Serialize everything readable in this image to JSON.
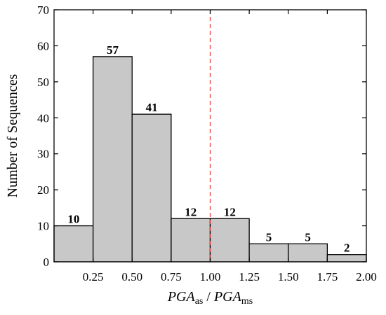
{
  "chart_data": {
    "type": "bar",
    "bin_edges": [
      0,
      0.25,
      0.5,
      0.75,
      1.0,
      1.25,
      1.5,
      1.75,
      2.0
    ],
    "values": [
      10,
      57,
      41,
      12,
      12,
      5,
      5,
      2
    ],
    "value_labels": [
      "10",
      "57",
      "41",
      "12",
      "12",
      "5",
      "5",
      "2"
    ],
    "xlim": [
      0,
      2.0
    ],
    "ylim": [
      0,
      70
    ],
    "x_ticks": [
      0.25,
      0.5,
      0.75,
      1.0,
      1.25,
      1.5,
      1.75,
      2.0
    ],
    "x_tick_labels": [
      "0.25",
      "0.50",
      "0.75",
      "1.00",
      "1.25",
      "1.50",
      "1.75",
      "2.00"
    ],
    "y_ticks": [
      0,
      10,
      20,
      30,
      40,
      50,
      60,
      70
    ],
    "y_tick_labels": [
      "0",
      "10",
      "20",
      "30",
      "40",
      "50",
      "60",
      "70"
    ],
    "ylabel": "Number of Sequences",
    "xlabel": {
      "part1_main": "PGA",
      "part1_sub": "as",
      "separator": " / ",
      "part2_main": "PGA",
      "part2_sub": "ms"
    },
    "reference_line": {
      "x": 1.0,
      "style": "dashed",
      "color": "#e8413c"
    },
    "bar_fill": "#c8c8c8",
    "bar_stroke": "#000000",
    "grid": false,
    "legend": "none"
  }
}
